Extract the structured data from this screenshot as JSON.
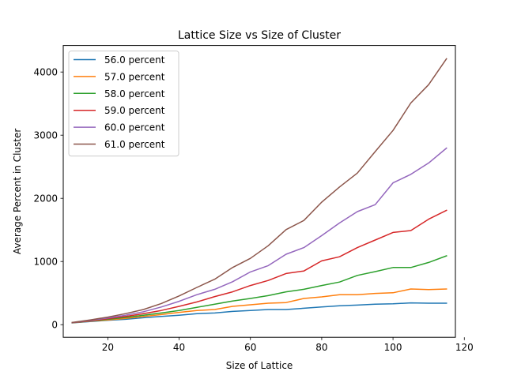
{
  "chart_data": {
    "type": "line",
    "title": "Lattice Size vs Size of Cluster",
    "xlabel": "Size of Lattice",
    "ylabel": "Average Percent in Cluster",
    "xlim": [
      7.5,
      117.5
    ],
    "ylim": [
      -200,
      4420
    ],
    "xticks": [
      20,
      40,
      60,
      80,
      100,
      120
    ],
    "yticks": [
      0,
      1000,
      2000,
      3000,
      4000
    ],
    "grid": false,
    "legend_position": "upper-left",
    "x": [
      10,
      15,
      20,
      25,
      30,
      35,
      40,
      45,
      50,
      55,
      60,
      65,
      70,
      75,
      80,
      85,
      90,
      95,
      100,
      105,
      110,
      115
    ],
    "series": [
      {
        "name": "56.0 percent",
        "color": "#1f77b4",
        "values": [
          28,
          50,
          70,
          85,
          110,
          130,
          150,
          175,
          185,
          210,
          225,
          240,
          240,
          260,
          280,
          300,
          310,
          325,
          330,
          345,
          340,
          340
        ]
      },
      {
        "name": "57.0 percent",
        "color": "#ff7f0e",
        "values": [
          30,
          55,
          75,
          100,
          130,
          160,
          195,
          225,
          240,
          290,
          315,
          340,
          350,
          415,
          440,
          475,
          475,
          495,
          505,
          565,
          555,
          565
        ]
      },
      {
        "name": "58.0 percent",
        "color": "#2ca02c",
        "values": [
          30,
          60,
          85,
          115,
          150,
          185,
          225,
          275,
          325,
          375,
          415,
          460,
          520,
          560,
          620,
          675,
          780,
          840,
          905,
          905,
          985,
          1090
        ]
      },
      {
        "name": "59.0 percent",
        "color": "#d62728",
        "values": [
          32,
          62,
          95,
          130,
          175,
          225,
          290,
          360,
          445,
          520,
          620,
          700,
          810,
          850,
          1010,
          1075,
          1220,
          1340,
          1460,
          1490,
          1670,
          1810
        ]
      },
      {
        "name": "60.0 percent",
        "color": "#9467bd",
        "values": [
          33,
          68,
          105,
          150,
          205,
          280,
          370,
          475,
          560,
          680,
          835,
          935,
          1115,
          1220,
          1410,
          1610,
          1790,
          1900,
          2245,
          2380,
          2560,
          2795
        ]
      },
      {
        "name": "61.0 percent",
        "color": "#8c564b",
        "values": [
          35,
          75,
          120,
          175,
          240,
          335,
          455,
          590,
          720,
          905,
          1050,
          1250,
          1505,
          1650,
          1940,
          2180,
          2400,
          2740,
          3075,
          3510,
          3800,
          4210
        ]
      }
    ]
  }
}
